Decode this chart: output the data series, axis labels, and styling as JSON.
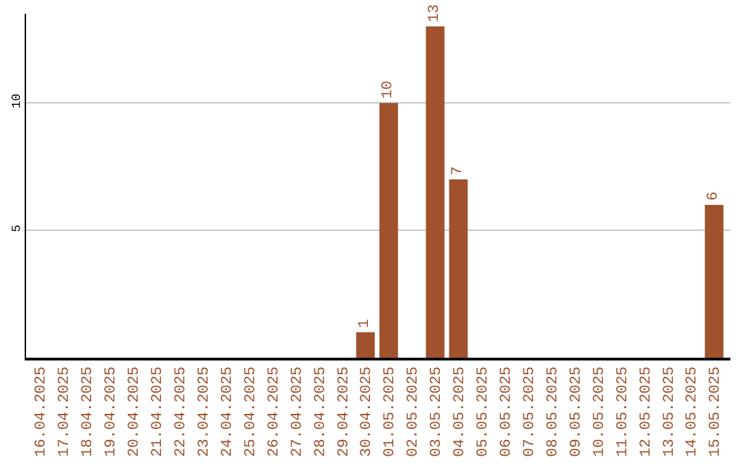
{
  "chart_data": {
    "type": "bar",
    "categories": [
      "16.04.2025",
      "17.04.2025",
      "18.04.2025",
      "19.04.2025",
      "20.04.2025",
      "21.04.2025",
      "22.04.2025",
      "23.04.2025",
      "24.04.2025",
      "25.04.2025",
      "26.04.2025",
      "27.04.2025",
      "28.04.2025",
      "29.04.2025",
      "30.04.2025",
      "01.05.2025",
      "02.05.2025",
      "03.05.2025",
      "04.05.2025",
      "05.05.2025",
      "06.05.2025",
      "07.05.2025",
      "08.05.2025",
      "09.05.2025",
      "10.05.2025",
      "11.05.2025",
      "12.05.2025",
      "13.05.2025",
      "14.05.2025",
      "15.05.2025"
    ],
    "values": [
      0,
      0,
      0,
      0,
      0,
      0,
      0,
      0,
      0,
      0,
      0,
      0,
      0,
      0,
      1,
      10,
      0,
      13,
      7,
      0,
      0,
      0,
      0,
      0,
      0,
      0,
      0,
      0,
      0,
      6
    ],
    "value_labels": [
      null,
      null,
      null,
      null,
      null,
      null,
      null,
      null,
      null,
      null,
      null,
      null,
      null,
      null,
      "1",
      "10",
      null,
      "13",
      "7",
      null,
      null,
      null,
      null,
      null,
      null,
      null,
      null,
      null,
      null,
      "6"
    ],
    "color": "#a0522d",
    "ylim": [
      0,
      13.5
    ],
    "yticks": [
      5,
      10
    ],
    "grid": "y",
    "legend": false
  }
}
